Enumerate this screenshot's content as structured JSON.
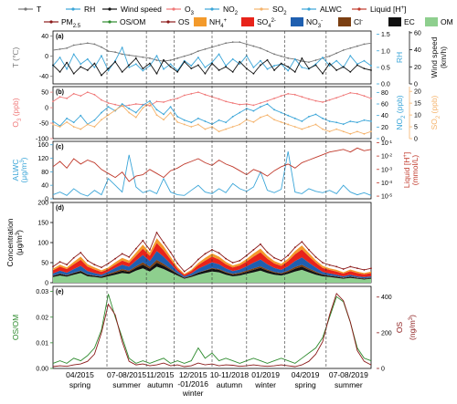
{
  "legend": {
    "row1": [
      {
        "label": "T",
        "color": "#777777",
        "kind": "line"
      },
      {
        "label": "RH",
        "color": "#3aa5d8",
        "kind": "line"
      },
      {
        "label": "Wind speed",
        "color": "#111111",
        "kind": "line"
      },
      {
        "label": "O3",
        "color": "#f07878",
        "kind": "line"
      },
      {
        "label": "NO2",
        "color": "#3aa5d8",
        "kind": "line"
      },
      {
        "label": "SO2",
        "color": "#f5b36b",
        "kind": "line"
      },
      {
        "label": "ALWC",
        "color": "#3aa5d8",
        "kind": "line"
      },
      {
        "label": "Liquid [H+]",
        "color": "#c0392b",
        "kind": "line"
      }
    ],
    "row2": [
      {
        "label": "PM2.5",
        "color": "#8b1a1a",
        "kind": "line"
      },
      {
        "label": "OS/OM",
        "color": "#2e8b2e",
        "kind": "line"
      },
      {
        "label": "OS",
        "color": "#8b1a1a",
        "kind": "line"
      },
      {
        "label": "NH4+",
        "color": "#f39a2b",
        "kind": "box"
      },
      {
        "label": "SO42-",
        "color": "#e8231a",
        "kind": "box"
      },
      {
        "label": "NO3-",
        "color": "#1f5fb0",
        "kind": "box"
      },
      {
        "label": "Cl-",
        "color": "#7b3f12",
        "kind": "box"
      },
      {
        "label": "EC",
        "color": "#111111",
        "kind": "box"
      },
      {
        "label": "OM",
        "color": "#8ecf8e",
        "kind": "box"
      }
    ]
  },
  "chart_data": [
    {
      "panel": "(a)",
      "type": "line",
      "y_left": {
        "label": "T (℃)",
        "ticks": [
          40,
          0,
          -40
        ],
        "range": [
          -55,
          50
        ]
      },
      "y_right": [
        {
          "label": "RH",
          "ticks": [
            "1.5",
            "1.0",
            "0.5",
            "0.0"
          ],
          "range": [
            0,
            1.6
          ]
        },
        {
          "label": "Wind speed (km/h)",
          "ticks": [
            60,
            40,
            20,
            0
          ],
          "range": [
            0,
            62
          ]
        }
      ],
      "series": [
        {
          "name": "T",
          "color": "#777777",
          "values": [
            12,
            14,
            16,
            22,
            24,
            26,
            24,
            18,
            10,
            8,
            4,
            2,
            0,
            -2,
            -4,
            -8,
            -10,
            -8,
            -4,
            0,
            4,
            10,
            14,
            18,
            22,
            26,
            28,
            28,
            24,
            20,
            16,
            10,
            4,
            0,
            -4,
            -6,
            -10,
            -12,
            -8,
            -4,
            0,
            6,
            12,
            16,
            20,
            24,
            26
          ]
        },
        {
          "name": "RH",
          "color": "#3aa5d8",
          "values": [
            0.55,
            0.8,
            0.45,
            0.9,
            0.6,
            0.75,
            0.5,
            0.85,
            0.4,
            0.7,
            1.1,
            0.5,
            0.6,
            0.4,
            0.55,
            0.85,
            0.45,
            0.6,
            0.4,
            0.7,
            0.55,
            0.8,
            0.5,
            0.65,
            0.9,
            0.55,
            0.75,
            0.6,
            0.85,
            0.5,
            0.7,
            0.45,
            0.55,
            0.6,
            0.4,
            0.75,
            0.5,
            0.45,
            0.6,
            0.8,
            0.55,
            0.7,
            0.5,
            0.85,
            0.6,
            0.7,
            0.55
          ]
        },
        {
          "name": "Wind speed",
          "color": "#111111",
          "values": [
            22,
            14,
            25,
            12,
            20,
            16,
            24,
            10,
            18,
            26,
            14,
            22,
            30,
            18,
            24,
            12,
            28,
            20,
            14,
            26,
            18,
            22,
            12,
            24,
            16,
            20,
            14,
            26,
            18,
            12,
            22,
            28,
            16,
            24,
            20,
            14,
            30,
            18,
            22,
            12,
            24,
            16,
            20,
            14,
            22,
            18,
            16
          ]
        }
      ]
    },
    {
      "panel": "(b)",
      "type": "line",
      "y_left": {
        "label": "O3 (ppb)",
        "ticks": [
          50,
          0,
          -50,
          -100
        ],
        "range": [
          -100,
          68
        ]
      },
      "y_right": [
        {
          "label": "NO2 (ppb)",
          "ticks": [
            80,
            60,
            40,
            20,
            0
          ],
          "range": [
            0,
            90
          ]
        },
        {
          "label": "SO2 (ppb)",
          "ticks": [
            20,
            15,
            10,
            5,
            0
          ],
          "range": [
            0,
            22
          ]
        }
      ],
      "series": [
        {
          "name": "O3",
          "color": "#f07878",
          "values": [
            20,
            35,
            30,
            45,
            38,
            50,
            42,
            25,
            15,
            10,
            5,
            8,
            12,
            10,
            6,
            20,
            18,
            25,
            30,
            40,
            45,
            50,
            42,
            35,
            28,
            20,
            15,
            10,
            12,
            8,
            15,
            22,
            30,
            38,
            45,
            42,
            35,
            28,
            22,
            18,
            25,
            32,
            40,
            48,
            45,
            38,
            30
          ]
        },
        {
          "name": "NO2",
          "color": "#3aa5d8",
          "values": [
            30,
            22,
            35,
            28,
            40,
            25,
            32,
            45,
            55,
            48,
            60,
            52,
            45,
            58,
            65,
            50,
            42,
            55,
            38,
            32,
            28,
            35,
            30,
            25,
            32,
            28,
            38,
            45,
            52,
            48,
            55,
            60,
            50,
            45,
            40,
            35,
            30,
            38,
            42,
            35,
            30,
            28,
            25,
            30,
            28,
            32,
            30
          ]
        },
        {
          "name": "SO2",
          "color": "#f5b36b",
          "values": [
            6,
            5,
            7,
            5,
            4,
            6,
            5,
            8,
            10,
            12,
            14,
            11,
            9,
            13,
            15,
            10,
            8,
            11,
            7,
            6,
            5,
            6,
            4,
            5,
            3,
            4,
            5,
            6,
            8,
            7,
            9,
            10,
            8,
            7,
            6,
            5,
            4,
            5,
            6,
            4,
            3,
            4,
            3,
            2,
            3,
            2,
            3
          ]
        }
      ]
    },
    {
      "panel": "(c)",
      "type": "line",
      "y_left": {
        "label": "ALWC (μg/m3)",
        "ticks": [
          160,
          120,
          80,
          40,
          0
        ],
        "range": [
          0,
          170
        ]
      },
      "y_right": [
        {
          "label": "Liquid [H+] (mmol/L)",
          "ticks": [
            "10^-1",
            "10^-2",
            "10^-3",
            "10^-4",
            "10^-5"
          ],
          "range": [
            -5.2,
            -0.9
          ]
        }
      ],
      "series": [
        {
          "name": "ALWC",
          "color": "#3aa5d8",
          "values": [
            12,
            20,
            10,
            30,
            15,
            8,
            25,
            12,
            60,
            40,
            20,
            130,
            35,
            18,
            25,
            15,
            60,
            20,
            12,
            10,
            25,
            40,
            20,
            15,
            30,
            18,
            45,
            30,
            22,
            35,
            80,
            25,
            18,
            28,
            140,
            20,
            15,
            30,
            22,
            18,
            25,
            15,
            40,
            20,
            12,
            18,
            10
          ]
        },
        {
          "name": "Liquid [H+]",
          "color": "#c0392b",
          "values": [
            -2.8,
            -2.4,
            -2.9,
            -2.2,
            -2.6,
            -2.3,
            -2.5,
            -3.0,
            -3.3,
            -3.6,
            -3.2,
            -3.9,
            -3.5,
            -3.4,
            -3.0,
            -3.3,
            -3.6,
            -3.1,
            -2.9,
            -2.6,
            -2.4,
            -2.2,
            -2.5,
            -2.7,
            -2.3,
            -2.6,
            -2.8,
            -3.1,
            -3.4,
            -3.0,
            -3.2,
            -3.5,
            -3.1,
            -2.8,
            -2.6,
            -2.9,
            -2.5,
            -2.3,
            -2.1,
            -1.9,
            -1.7,
            -1.6,
            -1.5,
            -1.7,
            -1.4,
            -1.6,
            -1.5
          ]
        }
      ]
    },
    {
      "panel": "(d)",
      "type": "area",
      "y_left": {
        "label": "Concentration (μg/m3)",
        "ticks": [
          200,
          150,
          100,
          50,
          0
        ],
        "range": [
          0,
          200
        ]
      },
      "series": [
        {
          "name": "OM",
          "color": "#8ecf8e",
          "values": [
            14,
            18,
            15,
            20,
            24,
            16,
            14,
            12,
            16,
            20,
            24,
            22,
            30,
            36,
            28,
            40,
            34,
            26,
            18,
            10,
            14,
            20,
            24,
            28,
            26,
            20,
            16,
            18,
            22,
            26,
            30,
            24,
            20,
            18,
            22,
            28,
            32,
            26,
            20,
            16,
            14,
            12,
            10,
            12,
            10,
            8,
            10
          ]
        },
        {
          "name": "EC",
          "color": "#111111",
          "values": [
            3,
            4,
            3,
            4,
            5,
            4,
            3,
            3,
            4,
            5,
            6,
            5,
            7,
            9,
            7,
            10,
            8,
            6,
            4,
            2,
            3,
            5,
            6,
            7,
            6,
            5,
            4,
            4,
            5,
            6,
            7,
            6,
            5,
            4,
            5,
            7,
            8,
            6,
            5,
            4,
            3,
            3,
            2,
            3,
            2,
            2,
            2
          ]
        },
        {
          "name": "Cl-",
          "color": "#7b3f12",
          "values": [
            1,
            1,
            1,
            1,
            1,
            1,
            1,
            1,
            2,
            3,
            4,
            3,
            4,
            6,
            5,
            7,
            5,
            3,
            1,
            1,
            1,
            1,
            1,
            2,
            2,
            2,
            2,
            3,
            3,
            4,
            4,
            3,
            2,
            2,
            3,
            4,
            5,
            4,
            3,
            1,
            1,
            1,
            1,
            1,
            1,
            1,
            1
          ]
        },
        {
          "name": "NO3-",
          "color": "#1f5fb0",
          "values": [
            5,
            7,
            6,
            9,
            12,
            8,
            6,
            4,
            6,
            9,
            11,
            10,
            14,
            18,
            14,
            22,
            18,
            12,
            6,
            3,
            5,
            9,
            12,
            14,
            12,
            9,
            7,
            8,
            11,
            14,
            17,
            13,
            10,
            8,
            11,
            15,
            18,
            14,
            10,
            6,
            5,
            4,
            3,
            4,
            3,
            3,
            3
          ]
        },
        {
          "name": "SO42-",
          "color": "#e8231a",
          "values": [
            8,
            10,
            9,
            12,
            15,
            11,
            9,
            7,
            6,
            8,
            10,
            9,
            12,
            16,
            13,
            20,
            16,
            11,
            6,
            4,
            6,
            9,
            12,
            14,
            12,
            10,
            9,
            10,
            12,
            15,
            18,
            14,
            11,
            10,
            13,
            17,
            20,
            16,
            12,
            10,
            9,
            8,
            7,
            9,
            8,
            7,
            8
          ]
        },
        {
          "name": "NH4+",
          "color": "#f39a2b",
          "values": [
            4,
            5,
            4,
            6,
            8,
            6,
            5,
            4,
            4,
            6,
            7,
            6,
            8,
            10,
            8,
            12,
            10,
            7,
            4,
            2,
            3,
            5,
            7,
            8,
            7,
            6,
            5,
            5,
            6,
            8,
            9,
            7,
            6,
            5,
            6,
            8,
            10,
            8,
            6,
            5,
            4,
            4,
            3,
            4,
            4,
            3,
            4
          ]
        },
        {
          "name": "PM2.5",
          "color": "#8b1a1a",
          "values": [
            40,
            52,
            45,
            62,
            75,
            55,
            45,
            38,
            48,
            60,
            72,
            64,
            85,
            105,
            82,
            125,
            100,
            76,
            48,
            28,
            40,
            58,
            72,
            82,
            74,
            60,
            50,
            55,
            68,
            82,
            96,
            76,
            62,
            55,
            68,
            88,
            102,
            82,
            64,
            50,
            44,
            40,
            34,
            40,
            36,
            32,
            36
          ]
        }
      ]
    },
    {
      "panel": "(e)",
      "type": "line",
      "y_left": {
        "label": "OS/OM",
        "ticks": [
          "0.03",
          "0.02",
          "0.01",
          "0.00"
        ],
        "range": [
          0,
          0.032
        ]
      },
      "y_right": [
        {
          "label": "OS (ng/m3)",
          "ticks": [
            400,
            200,
            0
          ],
          "range": [
            0,
            460
          ]
        }
      ],
      "series": [
        {
          "name": "OS/OM",
          "color": "#2e8b2e",
          "values": [
            0.002,
            0.003,
            0.002,
            0.004,
            0.003,
            0.005,
            0.008,
            0.015,
            0.029,
            0.02,
            0.012,
            0.004,
            0.002,
            0.003,
            0.002,
            0.003,
            0.004,
            0.002,
            0.003,
            0.002,
            0.003,
            0.008,
            0.004,
            0.006,
            0.003,
            0.004,
            0.003,
            0.002,
            0.003,
            0.004,
            0.003,
            0.002,
            0.003,
            0.004,
            0.003,
            0.002,
            0.004,
            0.006,
            0.008,
            0.012,
            0.02,
            0.028,
            0.026,
            0.018,
            0.008,
            0.004,
            0.003
          ]
        },
        {
          "name": "OS",
          "color": "#8b1a1a",
          "values": [
            10,
            15,
            12,
            20,
            25,
            40,
            80,
            200,
            360,
            300,
            150,
            40,
            20,
            25,
            15,
            20,
            30,
            15,
            20,
            10,
            15,
            30,
            20,
            25,
            15,
            20,
            18,
            12,
            15,
            20,
            15,
            12,
            15,
            20,
            15,
            10,
            20,
            40,
            80,
            150,
            300,
            420,
            380,
            260,
            100,
            40,
            20
          ]
        }
      ]
    }
  ],
  "x_axis": {
    "periods": [
      {
        "label": "04/2015",
        "season": "spring"
      },
      {
        "label": "07-08/2015",
        "season": "summer"
      },
      {
        "label": "11/2015",
        "season": "autumn"
      },
      {
        "label": "12/2015 -01/2016",
        "season": "winter"
      },
      {
        "label": "10-11/2018",
        "season": "autumn"
      },
      {
        "label": "01/2019",
        "season": "winter"
      },
      {
        "label": "04/2019",
        "season": "spring"
      },
      {
        "label": "07-08/2019",
        "season": "summer"
      }
    ]
  }
}
